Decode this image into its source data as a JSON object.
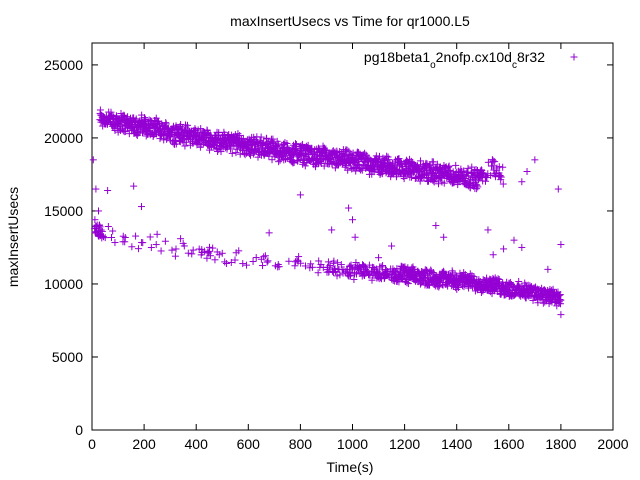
{
  "chart_data": {
    "type": "scatter",
    "title": "maxInsertUsecs vs Time for qr1000.L5",
    "xlabel": "Time(s)",
    "ylabel": "maxInsertUsecs",
    "xlim": [
      0,
      2000
    ],
    "ylim": [
      0,
      26500
    ],
    "x_ticks": [
      "0",
      "200",
      "400",
      "600",
      "800",
      "1000",
      "1200",
      "1400",
      "1600",
      "1800",
      "2000"
    ],
    "y_ticks": [
      "0",
      "5000",
      "10000",
      "15000",
      "20000",
      "25000"
    ],
    "grid": false,
    "legend_position": "top-right",
    "marker": "+",
    "series": [
      {
        "name": "pg18beta1_o2nofp.cx10d_c8r32",
        "legend_parts": [
          "pg18beta1",
          "o",
          "2nofp.cx10d",
          "c",
          "8r32"
        ],
        "color": "#9400d3",
        "upper_band": [
          [
            30,
            21400
          ],
          [
            50,
            21300
          ],
          [
            70,
            21200
          ],
          [
            100,
            21100
          ],
          [
            130,
            21000
          ],
          [
            160,
            20900
          ],
          [
            200,
            20800
          ],
          [
            240,
            20600
          ],
          [
            280,
            20500
          ],
          [
            320,
            20300
          ],
          [
            360,
            20200
          ],
          [
            400,
            20100
          ],
          [
            440,
            19900
          ],
          [
            480,
            19800
          ],
          [
            520,
            19700
          ],
          [
            560,
            19600
          ],
          [
            600,
            19500
          ],
          [
            640,
            19400
          ],
          [
            680,
            19300
          ],
          [
            720,
            19100
          ],
          [
            760,
            19000
          ],
          [
            800,
            18900
          ],
          [
            840,
            18800
          ],
          [
            880,
            18700
          ],
          [
            920,
            18600
          ],
          [
            960,
            18500
          ],
          [
            1000,
            18400
          ],
          [
            1040,
            18300
          ],
          [
            1080,
            18200
          ],
          [
            1120,
            18100
          ],
          [
            1160,
            18000
          ],
          [
            1200,
            17900
          ],
          [
            1240,
            17800
          ],
          [
            1280,
            17700
          ],
          [
            1320,
            17600
          ],
          [
            1360,
            17500
          ],
          [
            1400,
            17400
          ],
          [
            1440,
            17300
          ],
          [
            1480,
            17200
          ],
          [
            1520,
            17800
          ],
          [
            1560,
            17900
          ],
          [
            1580,
            17200
          ]
        ],
        "lower_band": [
          [
            10,
            14000
          ],
          [
            20,
            13700
          ],
          [
            40,
            13500
          ],
          [
            80,
            13300
          ],
          [
            130,
            13100
          ],
          [
            180,
            12900
          ],
          [
            240,
            12700
          ],
          [
            300,
            12500
          ],
          [
            360,
            12300
          ],
          [
            420,
            12100
          ],
          [
            480,
            11900
          ],
          [
            540,
            11700
          ],
          [
            600,
            11600
          ],
          [
            660,
            11500
          ],
          [
            720,
            11400
          ],
          [
            780,
            11300
          ],
          [
            840,
            11200
          ],
          [
            900,
            11100
          ],
          [
            960,
            11000
          ],
          [
            1020,
            10900
          ],
          [
            1080,
            10800
          ],
          [
            1140,
            10700
          ],
          [
            1200,
            10600
          ],
          [
            1260,
            10500
          ],
          [
            1320,
            10400
          ],
          [
            1380,
            10300
          ],
          [
            1440,
            10200
          ],
          [
            1500,
            10000
          ],
          [
            1540,
            9900
          ],
          [
            1580,
            9700
          ],
          [
            1620,
            9600
          ],
          [
            1660,
            9500
          ],
          [
            1700,
            9400
          ],
          [
            1740,
            9200
          ],
          [
            1770,
            9100
          ],
          [
            1800,
            8900
          ]
        ],
        "outliers": [
          [
            5,
            18500
          ],
          [
            15,
            16500
          ],
          [
            25,
            15000
          ],
          [
            60,
            16400
          ],
          [
            160,
            16700
          ],
          [
            190,
            15300
          ],
          [
            250,
            13400
          ],
          [
            340,
            13100
          ],
          [
            500,
            12100
          ],
          [
            680,
            13500
          ],
          [
            800,
            16100
          ],
          [
            920,
            13700
          ],
          [
            985,
            15200
          ],
          [
            1000,
            14400
          ],
          [
            1010,
            13200
          ],
          [
            1100,
            11800
          ],
          [
            1150,
            12600
          ],
          [
            1320,
            14000
          ],
          [
            1350,
            13200
          ],
          [
            1520,
            13700
          ],
          [
            1540,
            12000
          ],
          [
            1580,
            12400
          ],
          [
            1620,
            13000
          ],
          [
            1650,
            12500
          ],
          [
            1670,
            17700
          ],
          [
            1700,
            18500
          ],
          [
            1790,
            16500
          ],
          [
            1800,
            12700
          ],
          [
            1800,
            7900
          ],
          [
            1750,
            11000
          ],
          [
            1650,
            17000
          ]
        ]
      }
    ]
  }
}
